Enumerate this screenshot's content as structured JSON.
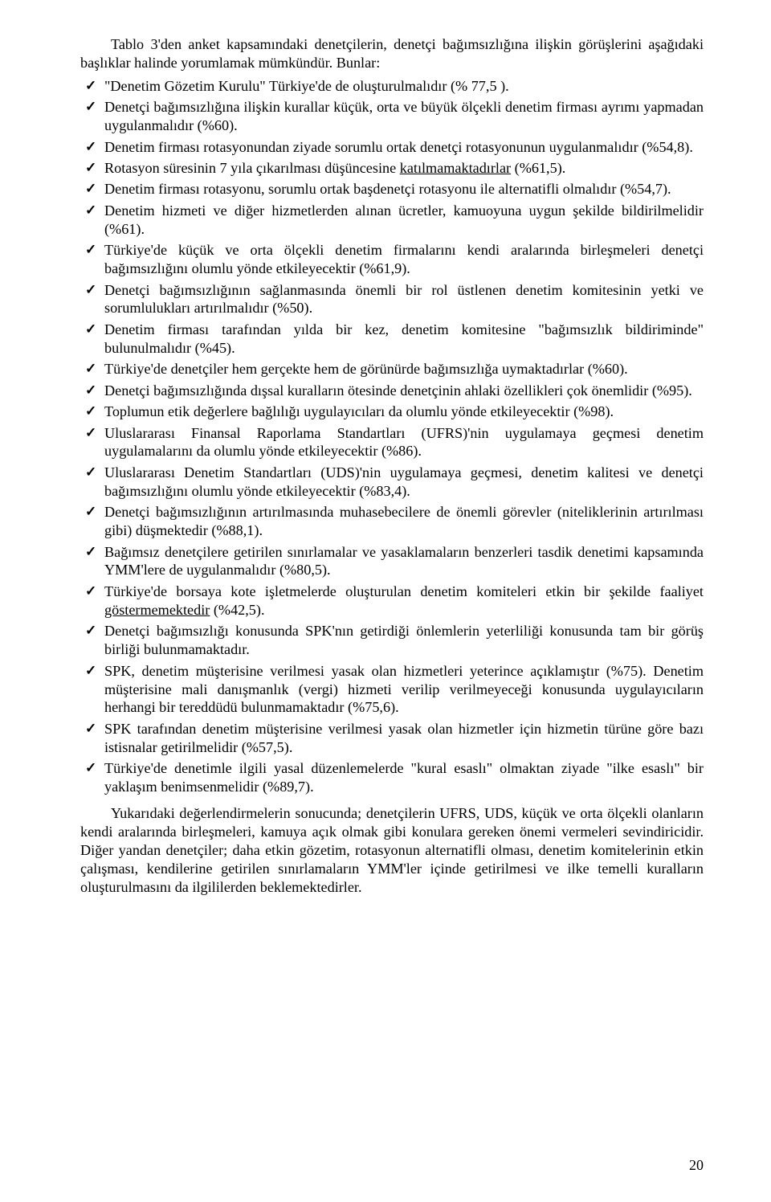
{
  "intro": "Tablo 3'den anket kapsamındaki denetçilerin, denetçi bağımsızlığına ilişkin görüşlerini aşağıdaki başlıklar halinde yorumlamak mümkündür. Bunlar:",
  "findings": [
    {
      "pre": "\"Denetim Gözetim Kurulu\" Türkiye'de de oluşturulmalıdır (% 77,5 )."
    },
    {
      "pre": "Denetçi bağımsızlığına ilişkin kurallar küçük, orta ve büyük ölçekli denetim firması ayrımı yapmadan uygulanmalıdır (%60)."
    },
    {
      "pre": "Denetim firması rotasyonundan ziyade sorumlu ortak denetçi rotasyonunun uygulanmalıdır (%54,8)."
    },
    {
      "pre": "Rotasyon süresinin 7 yıla çıkarılması düşüncesine ",
      "u": "katılmamaktadırlar",
      "post": " (%61,5)."
    },
    {
      "pre": "Denetim firması rotasyonu, sorumlu ortak başdenetçi rotasyonu ile alternatifli olmalıdır (%54,7)."
    },
    {
      "pre": "Denetim hizmeti ve diğer hizmetlerden alınan ücretler, kamuoyuna uygun şekilde bildirilmelidir (%61)."
    },
    {
      "pre": "Türkiye'de küçük ve orta ölçekli denetim firmalarını kendi aralarında birleşmeleri denetçi bağımsızlığını olumlu yönde etkileyecektir (%61,9)."
    },
    {
      "pre": "Denetçi bağımsızlığının sağlanmasında önemli bir rol üstlenen denetim komitesinin yetki ve sorumlulukları artırılmalıdır (%50)."
    },
    {
      "pre": "Denetim firması tarafından yılda bir kez, denetim komitesine \"bağımsızlık bildiriminde\" bulunulmalıdır (%45)."
    },
    {
      "pre": "Türkiye'de denetçiler hem gerçekte hem de görünürde bağımsızlığa uymaktadırlar (%60)."
    },
    {
      "pre": "Denetçi bağımsızlığında dışsal kuralların ötesinde denetçinin ahlaki özellikleri çok önemlidir (%95)."
    },
    {
      "pre": "Toplumun etik değerlere bağlılığı uygulayıcıları da olumlu yönde etkileyecektir (%98)."
    },
    {
      "pre": "Uluslararası Finansal Raporlama Standartları (UFRS)'nin uygulamaya geçmesi denetim uygulamalarını da olumlu yönde etkileyecektir (%86)."
    },
    {
      "pre": "Uluslararası Denetim Standartları (UDS)'nin uygulamaya geçmesi, denetim kalitesi ve denetçi bağımsızlığını olumlu yönde etkileyecektir (%83,4)."
    },
    {
      "pre": "Denetçi bağımsızlığının artırılmasında muhasebecilere de önemli görevler (niteliklerinin artırılması gibi) düşmektedir (%88,1)."
    },
    {
      "pre": "Bağımsız denetçilere getirilen sınırlamalar ve yasaklamaların benzerleri tasdik denetimi kapsamında YMM'lere de uygulanmalıdır (%80,5)."
    },
    {
      "pre": "Türkiye'de borsaya kote işletmelerde oluşturulan denetim komiteleri etkin bir şekilde faaliyet ",
      "u": "göstermemektedir",
      "post": " (%42,5)."
    },
    {
      "pre": "Denetçi bağımsızlığı konusunda SPK'nın getirdiği önlemlerin yeterliliği konusunda tam bir görüş birliği bulunmamaktadır."
    },
    {
      "pre": "SPK, denetim müşterisine verilmesi yasak olan hizmetleri yeterince açıklamıştır (%75). Denetim müşterisine mali danışmanlık (vergi) hizmeti verilip verilmeyeceği konusunda uygulayıcıların herhangi bir tereddüdü bulunmamaktadır (%75,6)."
    },
    {
      "pre": "SPK tarafından denetim müşterisine verilmesi yasak olan hizmetler için hizmetin türüne göre bazı istisnalar getirilmelidir (%57,5)."
    },
    {
      "pre": "Türkiye'de denetimle ilgili yasal düzenlemelerde \"kural esaslı\" olmaktan ziyade \"ilke esaslı\" bir yaklaşım benimsenmelidir (%89,7)."
    }
  ],
  "conclusion": "Yukarıdaki değerlendirmelerin sonucunda; denetçilerin UFRS, UDS, küçük ve orta ölçekli olanların kendi aralarında birleşmeleri, kamuya açık olmak gibi konulara gereken önemi vermeleri sevindiricidir. Diğer yandan denetçiler; daha etkin gözetim, rotasyonun alternatifli olması, denetim komitelerinin etkin çalışması, kendilerine getirilen sınırlamaların YMM'ler içinde getirilmesi ve ilke temelli kuralların oluşturulmasını da ilgililerden beklemektedirler.",
  "page_number": "20",
  "style": {
    "text_color": "#000000",
    "background_color": "#ffffff",
    "font_family": "Times New Roman",
    "body_font_size_pt": 14,
    "line_height": 1.26,
    "check_mark": "✓"
  }
}
